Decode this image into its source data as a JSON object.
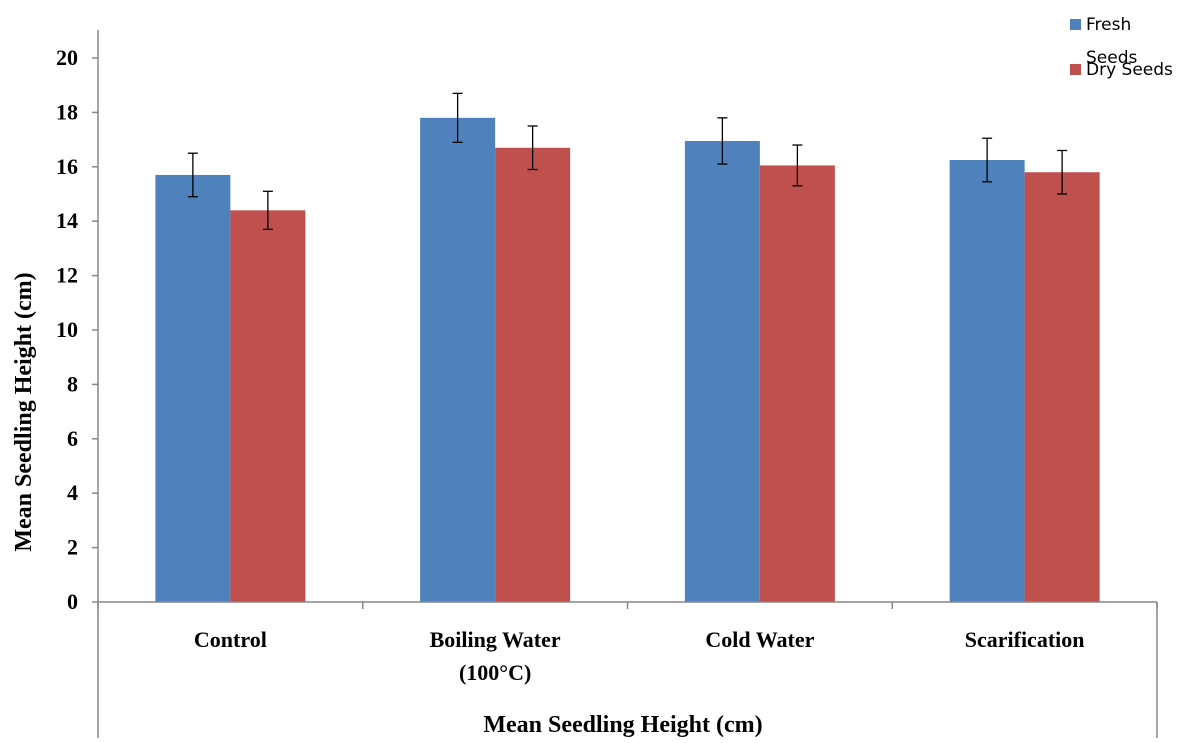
{
  "chart_data": {
    "type": "bar",
    "title": "",
    "xlabel": "Mean Seedling Height (cm)",
    "ylabel": "Mean Seedling Height (cm)",
    "ylim": [
      0,
      20
    ],
    "yticks": [
      "0",
      "2",
      "4",
      "6",
      "8",
      "10",
      "12",
      "14",
      "16",
      "18",
      "20"
    ],
    "categories": [
      [
        "Control"
      ],
      [
        "Boiling Water",
        "(100°C)"
      ],
      [
        "Cold Water"
      ],
      [
        "Scarification"
      ]
    ],
    "series": [
      {
        "name": "Fresh Seeds",
        "legend_lines": [
          "Fresh",
          "Seeds"
        ],
        "color": "#4f81bd",
        "values": [
          15.7,
          17.8,
          16.95,
          16.25
        ],
        "errors": [
          0.8,
          0.9,
          0.85,
          0.8
        ]
      },
      {
        "name": "Dry Seeds",
        "legend_lines": [
          "Dry Seeds"
        ],
        "color": "#c0504d",
        "values": [
          14.4,
          16.7,
          16.05,
          15.8
        ],
        "errors": [
          0.7,
          0.8,
          0.75,
          0.8
        ]
      }
    ],
    "grid": false,
    "legend_position": "top-right",
    "error_bars": true
  }
}
